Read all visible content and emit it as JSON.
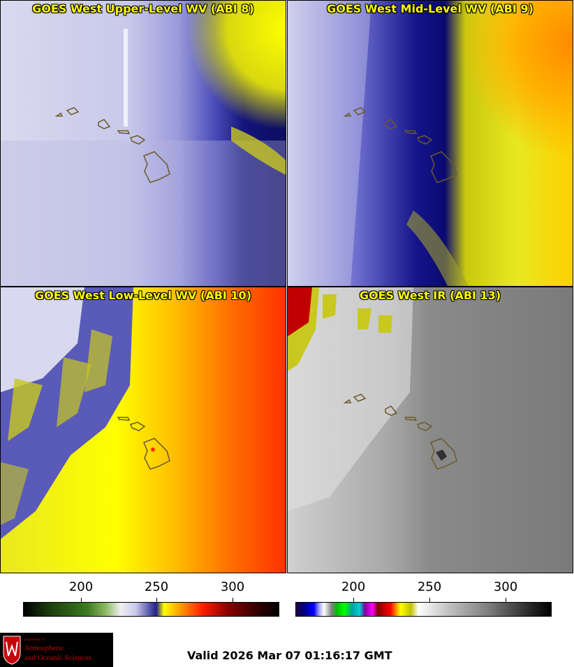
{
  "panels": [
    {
      "title": "GOES West Upper-Level WV (ABI 8)"
    },
    {
      "title": "GOES West Mid-Level WV (ABI 9)"
    },
    {
      "title": "GOES West Low-Level WV (ABI 10)"
    },
    {
      "title": "GOES West IR (ABI 13)"
    }
  ],
  "colorbars": {
    "wv": {
      "ticks": [
        "200",
        "250",
        "300"
      ],
      "gradient": [
        "#000000",
        "#1a3d0d",
        "#3d7a20",
        "#8ab860",
        "#ffffff",
        "#b0b0e0",
        "#20208a",
        "#ffff00",
        "#ff8000",
        "#ff0000",
        "#8a0000",
        "#300000",
        "#000000"
      ]
    },
    "ir": {
      "ticks": [
        "200",
        "250",
        "300"
      ]
    }
  },
  "logo": {
    "dept": "Department of",
    "line1": "Atmospheric",
    "line2": "and Oceanic Sciences"
  },
  "valid": "Valid 2026 Mar 07 01:16:17 GMT"
}
